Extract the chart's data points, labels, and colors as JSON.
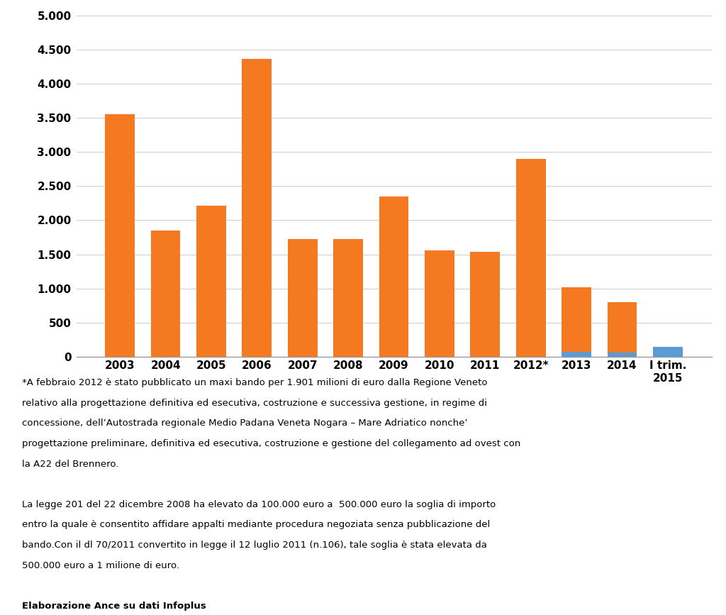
{
  "categories": [
    "2003",
    "2004",
    "2005",
    "2006",
    "2007",
    "2008",
    "2009",
    "2010",
    "2011",
    "2012*",
    "2013",
    "2014",
    "I trim.\n2015"
  ],
  "orange_values": [
    3550,
    1850,
    2210,
    4360,
    1720,
    1720,
    2350,
    1560,
    1540,
    2900,
    1020,
    800,
    0
  ],
  "blue_values": [
    0,
    0,
    0,
    0,
    0,
    0,
    0,
    0,
    0,
    0,
    75,
    65,
    140
  ],
  "orange_color": "#F47920",
  "blue_color": "#5B9BD5",
  "ylim": [
    0,
    5000
  ],
  "yticks": [
    0,
    500,
    1000,
    1500,
    2000,
    2500,
    3000,
    3500,
    4000,
    4500,
    5000
  ],
  "background_color": "#FFFFFF",
  "footnote_para1": "*A febbraio 2012 è stato pubblicato un maxi bando per 1.901 milioni di euro dalla Regione Veneto\nrelativo alla progettazione definitiva ed esecutiva, costruzione e successiva gestione, in regime di\nconcessione, dell’Autostrada regionale Medio Padana Veneta Nogara – Mare Adriatico nonche’\nprogettazione preliminare, definitiva ed esecutiva, costruzione e gestione del collegamento ad ovest con\nla A22 del Brennero.",
  "footnote_para2": "La legge 201 del 22 dicembre 2008 ha elevato da 100.000 euro a  500.000 euro la soglia di importo\nentro la quale è consentito affidare appalti mediante procedura negoziata senza pubblicazione del\nbando.Con il dl 70/2011 convertito in legge il 12 luglio 2011 (n.106), tale soglia è stata elevata da\n500.000 euro a 1 milione di euro.",
  "footnote_para3": "Elaborazione Ance su dati Infoplus"
}
